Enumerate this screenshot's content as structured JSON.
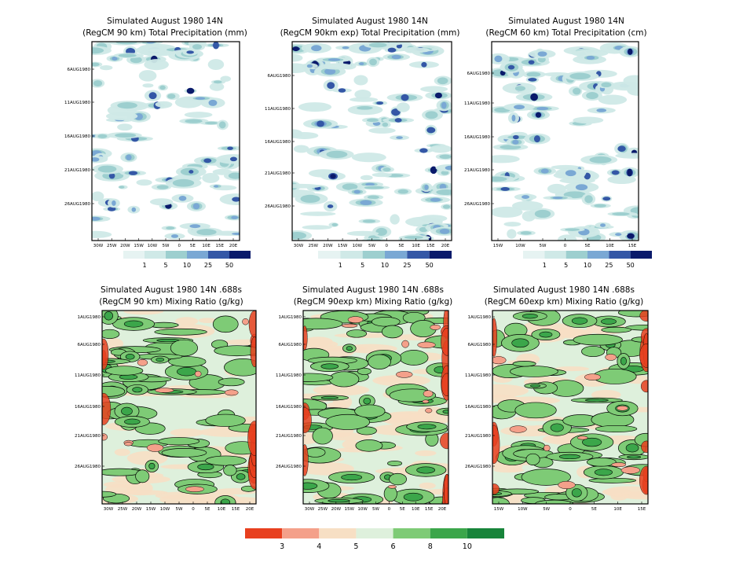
{
  "chart_data": [
    {
      "type": "heatmap",
      "title": [
        "Simulated August 1980 14N",
        "(RegCM 90 km) Total Precipitation (mm)"
      ],
      "y_ticks": [
        "6AUG1980",
        "11AUG1980",
        "16AUG1980",
        "21AUG1980",
        "26AUG1980"
      ],
      "x_ticks": [
        "30W",
        "25W",
        "20W",
        "15W",
        "10W",
        "5W",
        "0",
        "5E",
        "10E",
        "15E",
        "20E"
      ],
      "colorbar": {
        "levels": [
          "1",
          "5",
          "10",
          "25",
          "50"
        ],
        "colors": [
          "#cfe9e7",
          "#9dcfcf",
          "#7aa8d4",
          "#3457a6",
          "#0a1a6b"
        ]
      }
    },
    {
      "type": "heatmap",
      "title": [
        "Simulated August 1980 14N",
        "(RegCM 90km exp) Total Precipitation (mm)"
      ],
      "y_ticks": [
        "6AUG1980",
        "11AUG1980",
        "16AUG1980",
        "21AUG1980",
        "26AUG1980"
      ],
      "x_ticks": [
        "30W",
        "25W",
        "20W",
        "15W",
        "10W",
        "5W",
        "0",
        "5E",
        "10E",
        "15E",
        "20E"
      ],
      "colorbar": {
        "levels": [
          "1",
          "5",
          "10",
          "25",
          "50"
        ],
        "colors": [
          "#cfe9e7",
          "#9dcfcf",
          "#7aa8d4",
          "#3457a6",
          "#0a1a6b"
        ]
      }
    },
    {
      "type": "heatmap",
      "title": [
        "Simulated August 1980 14N",
        "(RegCM 60 km) Total Precipitation (cm)"
      ],
      "y_ticks": [
        "6AUG1980",
        "11AUG1980",
        "16AUG1980",
        "21AUG1980",
        "26AUG1980"
      ],
      "x_ticks": [
        "15W",
        "10W",
        "5W",
        "0",
        "5E",
        "10E",
        "15E"
      ],
      "colorbar": {
        "levels": [
          "1",
          "5",
          "10",
          "25",
          "50"
        ],
        "colors": [
          "#cfe9e7",
          "#9dcfcf",
          "#7aa8d4",
          "#3457a6",
          "#0a1a6b"
        ]
      }
    },
    {
      "type": "heatmap",
      "title": [
        "Simulated August 1980 14N .688s",
        "(RegCM 90 km) Mixing Ratio (g/kg)"
      ],
      "y_ticks": [
        "1AUG1980",
        "6AUG1980",
        "11AUG1980",
        "16AUG1980",
        "21AUG1980",
        "26AUG1980"
      ],
      "x_ticks": [
        "30W",
        "25W",
        "20W",
        "15W",
        "10W",
        "5W",
        "0",
        "5E",
        "10E",
        "15E",
        "20E"
      ]
    },
    {
      "type": "heatmap",
      "title": [
        "Simulated August 1980 14N .688s",
        "(RegCM 90exp km) Mixing Ratio (g/kg)"
      ],
      "y_ticks": [
        "1AUG1980",
        "6AUG1980",
        "11AUG1980",
        "16AUG1980",
        "21AUG1980",
        "26AUG1980"
      ],
      "x_ticks": [
        "30W",
        "25W",
        "20W",
        "15W",
        "10W",
        "5W",
        "0",
        "5E",
        "10E",
        "15E",
        "20E"
      ]
    },
    {
      "type": "heatmap",
      "title": [
        "Simulated August 1980 14N .688s",
        "(RegCM 60exp km) Mixing Ratio (g/kg)"
      ],
      "y_ticks": [
        "1AUG1980",
        "6AUG1980",
        "11AUG1980",
        "16AUG1980",
        "21AUG1980",
        "26AUG1980"
      ],
      "x_ticks": [
        "15W",
        "10W",
        "5W",
        "0",
        "5E",
        "10E",
        "15E"
      ]
    }
  ],
  "mixing_colorbar": {
    "levels": [
      "3",
      "4",
      "5",
      "6",
      "8",
      "10"
    ],
    "colors": [
      "#e8401f",
      "#f4a08a",
      "#f7dfc4",
      "#def0dc",
      "#7ecb76",
      "#3ba64a",
      "#17843a"
    ]
  }
}
